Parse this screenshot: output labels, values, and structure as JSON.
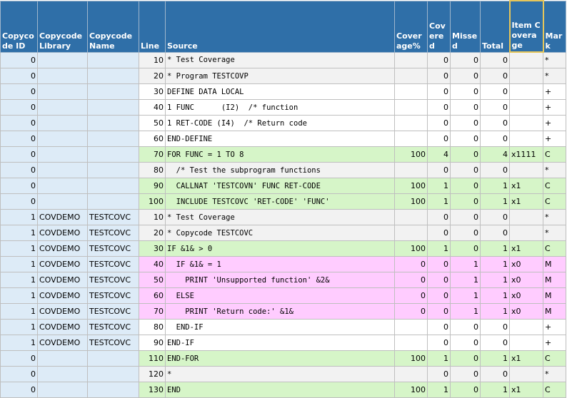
{
  "table": {
    "headers": [
      "Copycode ID",
      "Copycode Library",
      "Copycode Name",
      "Line",
      "Source",
      "Coverage%",
      "Covered",
      "Missed",
      "Total",
      "Item Coverage",
      "Mark"
    ],
    "rows": [
      [
        0,
        null,
        null,
        10,
        "* Test Coverage",
        null,
        0,
        0,
        0,
        null,
        "*"
      ],
      [
        0,
        null,
        null,
        20,
        "* Program TESTCOVP",
        null,
        0,
        0,
        0,
        null,
        "*"
      ],
      [
        0,
        null,
        null,
        30,
        "DEFINE DATA LOCAL",
        null,
        0,
        0,
        0,
        null,
        "+"
      ],
      [
        0,
        null,
        null,
        40,
        "1 FUNC      (I2)  /* function",
        null,
        0,
        0,
        0,
        null,
        "+"
      ],
      [
        0,
        null,
        null,
        50,
        "1 RET-CODE (I4)  /* Return code",
        null,
        0,
        0,
        0,
        null,
        "+"
      ],
      [
        0,
        null,
        null,
        60,
        "END-DEFINE",
        null,
        0,
        0,
        0,
        null,
        "+"
      ],
      [
        0,
        null,
        null,
        70,
        "FOR FUNC = 1 TO 8",
        100,
        4,
        0,
        4,
        "x1111",
        "C"
      ],
      [
        0,
        null,
        null,
        80,
        "  /* Test the subprogram functions",
        null,
        0,
        0,
        0,
        null,
        "*"
      ],
      [
        0,
        null,
        null,
        90,
        "  CALLNAT 'TESTCOVN' FUNC RET-CODE",
        100,
        1,
        0,
        1,
        "x1",
        "C"
      ],
      [
        0,
        null,
        null,
        100,
        "  INCLUDE TESTCOVC 'RET-CODE' 'FUNC'",
        100,
        1,
        0,
        1,
        "x1",
        "C"
      ],
      [
        1,
        "COVDEMO",
        "TESTCOVC",
        10,
        "* Test Coverage",
        null,
        0,
        0,
        0,
        null,
        "*"
      ],
      [
        1,
        "COVDEMO",
        "TESTCOVC",
        20,
        "* Copycode TESTCOVC",
        null,
        0,
        0,
        0,
        null,
        "*"
      ],
      [
        1,
        "COVDEMO",
        "TESTCOVC",
        30,
        "IF &1& > 0",
        100,
        1,
        0,
        1,
        "x1",
        "C"
      ],
      [
        1,
        "COVDEMO",
        "TESTCOVC",
        40,
        "  IF &1& = 1",
        0,
        0,
        1,
        1,
        "x0",
        "M"
      ],
      [
        1,
        "COVDEMO",
        "TESTCOVC",
        50,
        "    PRINT 'Unsupported function' &2&",
        0,
        0,
        1,
        1,
        "x0",
        "M"
      ],
      [
        1,
        "COVDEMO",
        "TESTCOVC",
        60,
        "  ELSE",
        0,
        0,
        1,
        1,
        "x0",
        "M"
      ],
      [
        1,
        "COVDEMO",
        "TESTCOVC",
        70,
        "    PRINT 'Return code:' &1&",
        0,
        0,
        1,
        1,
        "x0",
        "M"
      ],
      [
        1,
        "COVDEMO",
        "TESTCOVC",
        80,
        "  END-IF",
        null,
        0,
        0,
        0,
        null,
        "+"
      ],
      [
        1,
        "COVDEMO",
        "TESTCOVC",
        90,
        "END-IF",
        null,
        0,
        0,
        0,
        null,
        "+"
      ],
      [
        0,
        null,
        null,
        110,
        "END-FOR",
        100,
        1,
        0,
        1,
        "x1",
        "C"
      ],
      [
        0,
        null,
        null,
        120,
        "*",
        null,
        0,
        0,
        0,
        null,
        "*"
      ],
      [
        0,
        null,
        null,
        130,
        "END",
        100,
        1,
        0,
        1,
        "x1",
        "C"
      ]
    ]
  }
}
